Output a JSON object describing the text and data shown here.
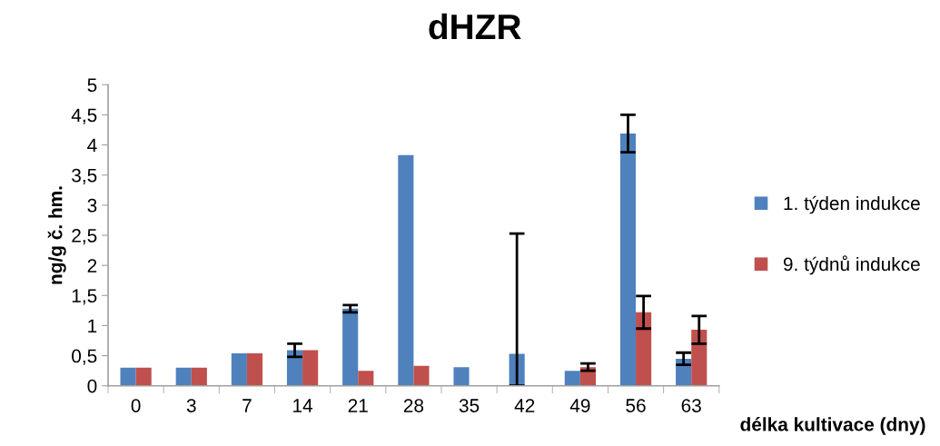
{
  "chart_data": {
    "type": "bar",
    "title": "dHZR",
    "xlabel": "délka kultivace (dny)",
    "ylabel": "ng/g č. hm.",
    "categories": [
      "0",
      "3",
      "7",
      "14",
      "21",
      "28",
      "35",
      "42",
      "49",
      "56",
      "63"
    ],
    "series": [
      {
        "name": "1. týden indukce",
        "color": "#4f81bd",
        "values": [
          0.3,
          0.3,
          0.54,
          0.59,
          1.28,
          3.83,
          0.31,
          0.53,
          0.25,
          4.19,
          0.45
        ],
        "errors": [
          null,
          null,
          null,
          0.11,
          0.06,
          null,
          null,
          [
            0,
            2.53
          ],
          null,
          0.31,
          0.1
        ]
      },
      {
        "name": "9. týdnů indukce",
        "color": "#c0504d",
        "values": [
          0.3,
          0.3,
          0.54,
          0.59,
          0.25,
          0.33,
          null,
          null,
          0.31,
          1.22,
          0.93
        ],
        "errors": [
          null,
          null,
          null,
          null,
          null,
          null,
          null,
          null,
          0.06,
          0.27,
          0.23
        ]
      }
    ],
    "ylim": [
      0,
      5
    ],
    "yticks": [
      0,
      {
        "value": 0.5,
        "label": "0,5"
      },
      1,
      {
        "value": 1.5,
        "label": "1,5"
      },
      2,
      {
        "value": 2.5,
        "label": "2,5"
      },
      3,
      {
        "value": 3.5,
        "label": "3,5"
      },
      4,
      {
        "value": 4.5,
        "label": "4,5"
      },
      5
    ],
    "grid": false,
    "legend": "right"
  }
}
